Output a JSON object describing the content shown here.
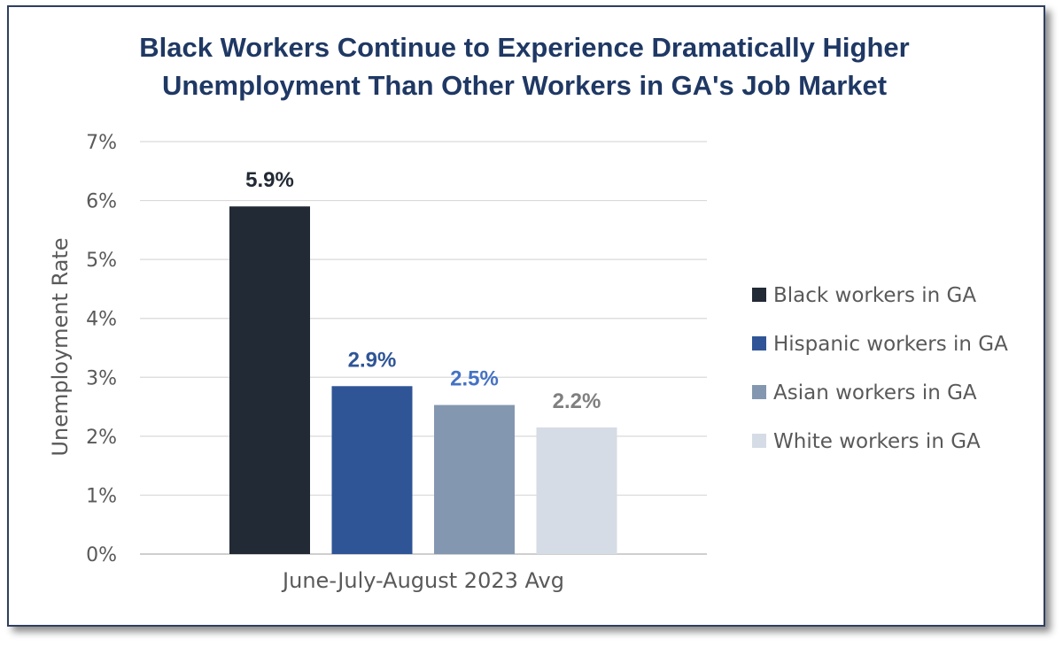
{
  "chart_data": {
    "type": "bar",
    "title_lines": [
      "Black Workers Continue to Experience  Dramatically Higher",
      "Unemployment Than Other Workers in GA's Job Market"
    ],
    "xlabel": "June-July-August 2023 Avg",
    "ylabel": "Unemployment Rate",
    "ylim": [
      0,
      7
    ],
    "yticks": [
      "0%",
      "1%",
      "2%",
      "3%",
      "4%",
      "5%",
      "6%",
      "7%"
    ],
    "categories": [
      "June-July-August 2023 Avg"
    ],
    "series": [
      {
        "name": "Black workers in GA",
        "value": 5.9,
        "label": "5.9%",
        "color": "#222a35",
        "label_color": "#222a35"
      },
      {
        "name": "Hispanic workers in GA",
        "value": 2.85,
        "label": "2.9%",
        "color": "#2f5597",
        "label_color": "#2f5597"
      },
      {
        "name": "Asian workers in GA",
        "value": 2.53,
        "label": "2.5%",
        "color": "#8497b0",
        "label_color": "#4472c4"
      },
      {
        "name": "White workers in GA",
        "value": 2.15,
        "label": "2.2%",
        "color": "#d6dce5",
        "label_color": "#7f7f7f"
      }
    ],
    "grid": true,
    "legend": "right"
  }
}
